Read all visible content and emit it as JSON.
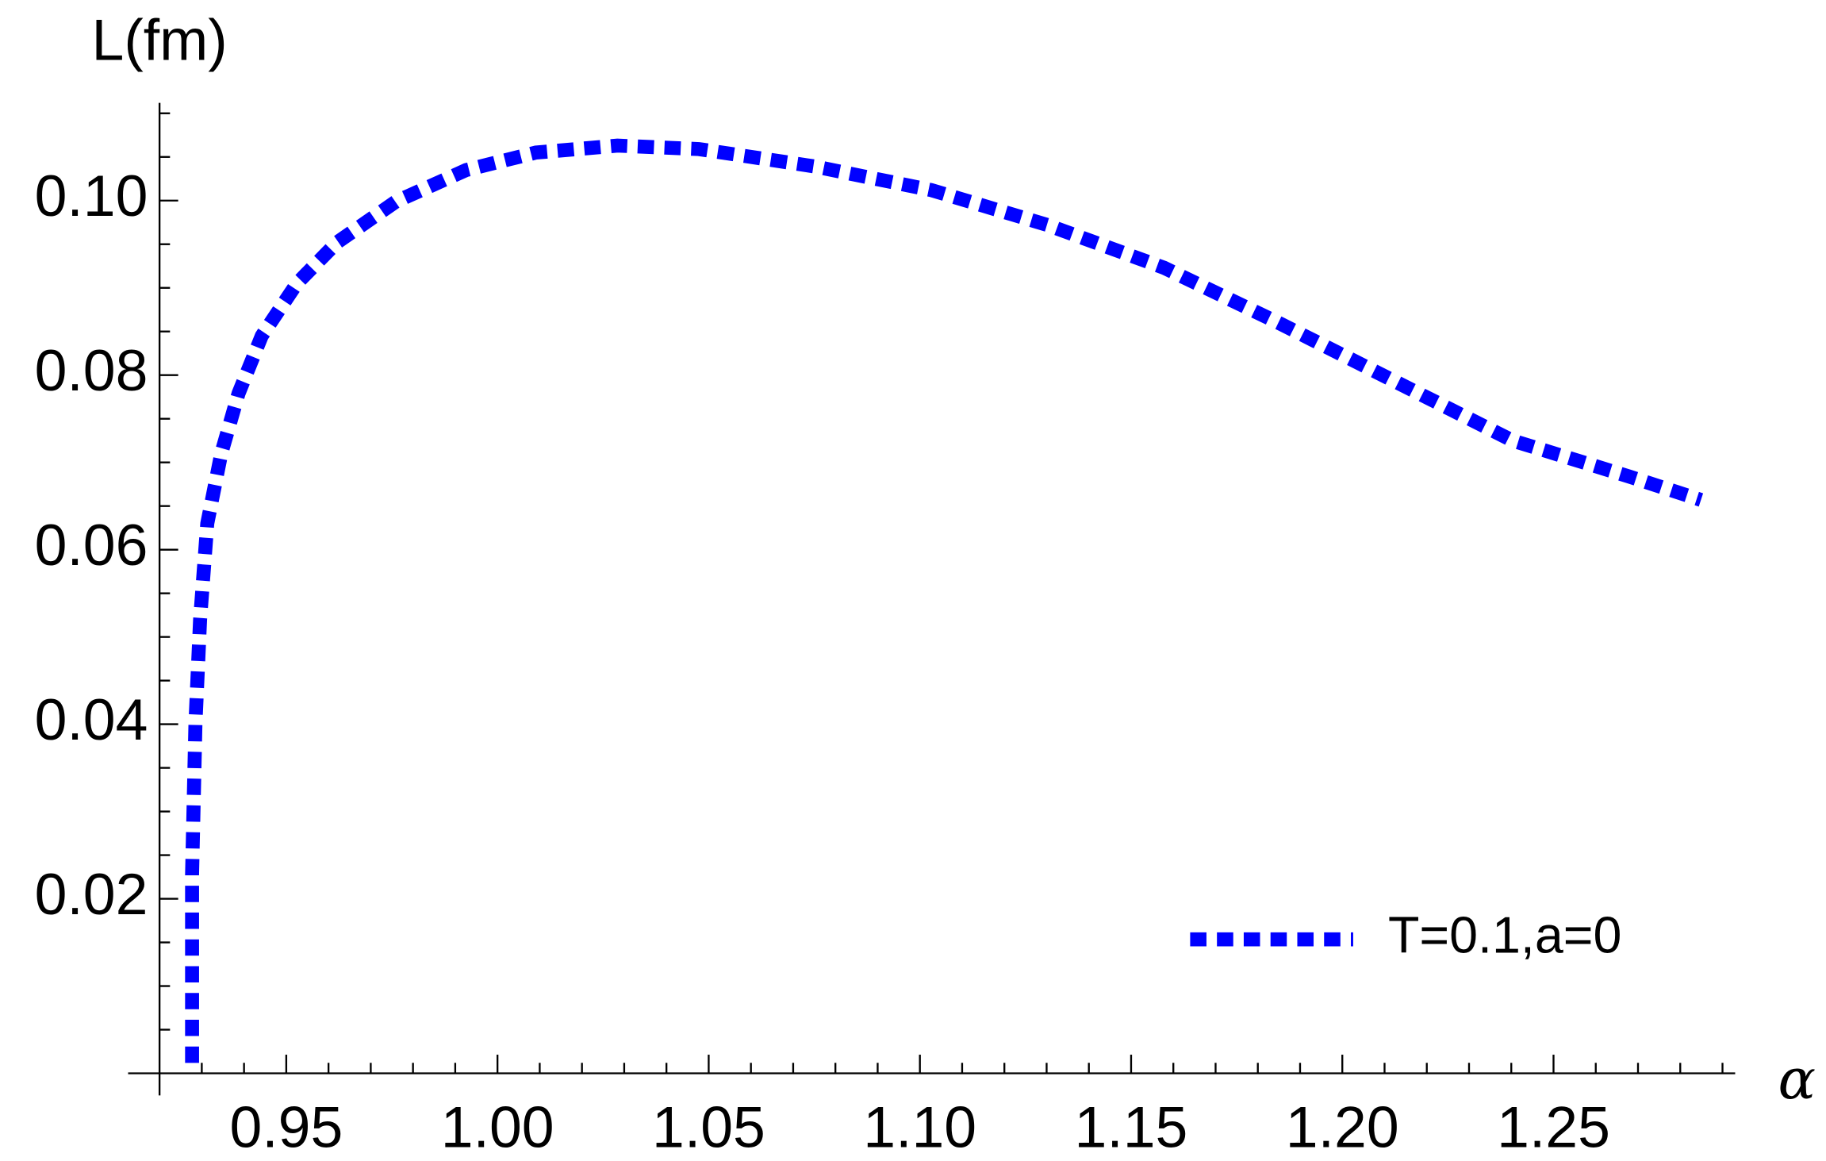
{
  "chart_data": {
    "type": "line",
    "x_label": "α",
    "y_label": "L(fm)",
    "series": [
      {
        "name": "T=0.1,a=0",
        "color": "#0000ff",
        "x": [
          0.9277,
          0.9277,
          0.9285,
          0.9296,
          0.9313,
          0.9346,
          0.9387,
          0.9442,
          0.9525,
          0.962,
          0.976,
          0.9926,
          1.0091,
          1.0284,
          1.0477,
          1.0752,
          1.1027,
          1.1302,
          1.1578,
          1.1853,
          1.2128,
          1.2403,
          1.2678,
          1.2849
        ],
        "values": [
          0.0012,
          0.0228,
          0.0401,
          0.052,
          0.063,
          0.071,
          0.0779,
          0.0845,
          0.0905,
          0.0952,
          0.0999,
          0.1035,
          0.1055,
          0.1063,
          0.1059,
          0.1039,
          0.1012,
          0.0972,
          0.0923,
          0.0859,
          0.0792,
          0.0725,
          0.0684,
          0.0657
        ]
      }
    ],
    "xlim": [
      0.92,
      1.293
    ],
    "ylim": [
      0,
      0.1112
    ],
    "xticks": [
      0.95,
      {
        "value": 1,
        "label": "1.00"
      },
      1.05,
      {
        "value": 1.1,
        "label": "1.10"
      },
      1.15,
      {
        "value": 1.2,
        "label": "1.20"
      },
      1.25
    ],
    "yticks": [
      0.02,
      0.04,
      0.06,
      0.08,
      {
        "value": 0.1,
        "label": "0.10"
      }
    ],
    "xminorticks": [
      0.93,
      0.94,
      0.96,
      0.97,
      0.98,
      0.99,
      1.01,
      1.02,
      1.03,
      1.04,
      1.06,
      1.07,
      1.08,
      1.09,
      1.11,
      1.12,
      1.13,
      1.14,
      1.16,
      1.17,
      1.18,
      1.19,
      1.21,
      1.22,
      1.23,
      1.24,
      1.26,
      1.27,
      1.28,
      1.29
    ],
    "yminorticks": [
      0.005,
      0.01,
      0.015,
      0.025,
      0.03,
      0.035,
      0.045,
      0.05,
      0.055,
      0.065,
      0.07,
      0.075,
      0.085,
      0.09,
      0.095,
      0.105,
      0.11
    ],
    "legend": "lower-right"
  }
}
